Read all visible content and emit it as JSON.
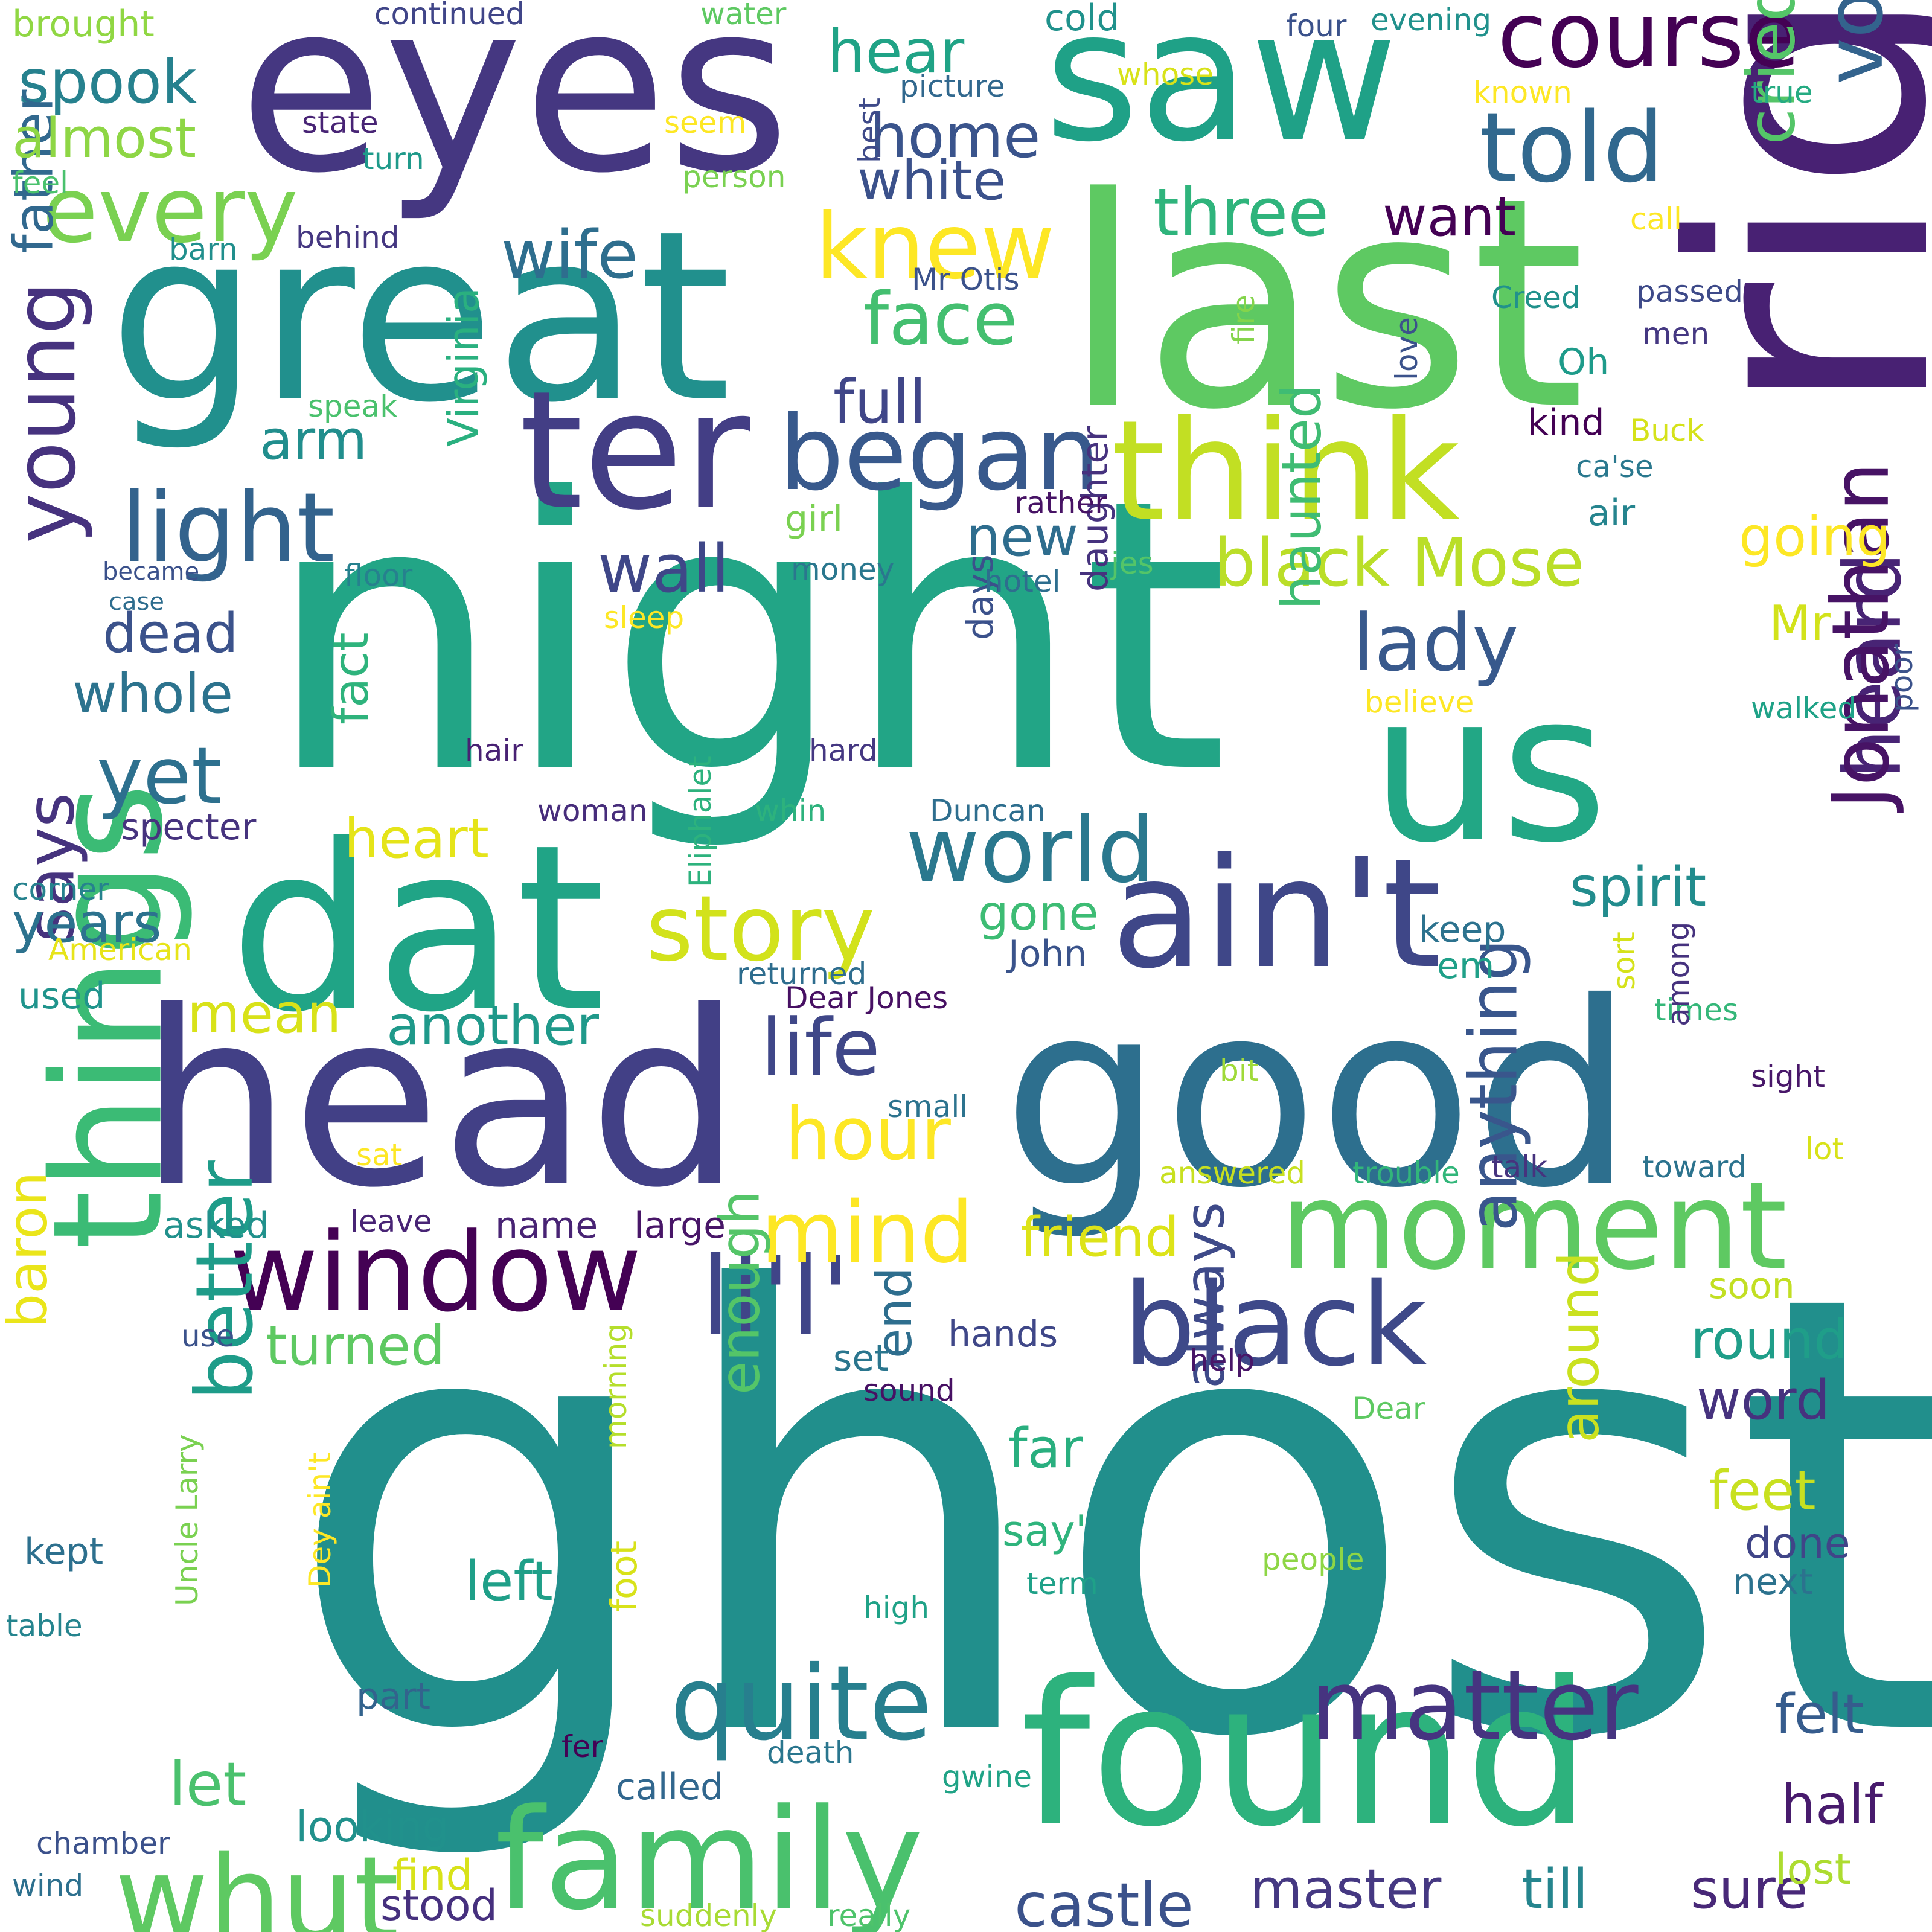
{
  "words": [
    {
      "text": "ghost",
      "color": "#218f8c"
    },
    {
      "text": "night",
      "color": "#22a586"
    },
    {
      "text": "good",
      "color": "#2d6f8e"
    },
    {
      "text": "head",
      "color": "#424086"
    },
    {
      "text": "eyes",
      "color": "#453781"
    },
    {
      "text": "saw",
      "color": "#1fa187"
    },
    {
      "text": "great",
      "color": "#21908d"
    },
    {
      "text": "last",
      "color": "#5ec962"
    },
    {
      "text": "right",
      "color": "#482173"
    },
    {
      "text": "us",
      "color": "#22a785"
    },
    {
      "text": "dat",
      "color": "#20a486"
    },
    {
      "text": "found",
      "color": "#2db27d"
    },
    {
      "text": "ain't",
      "color": "#3f4788"
    },
    {
      "text": "ter",
      "color": "#433e85"
    },
    {
      "text": "think",
      "color": "#c2df23"
    },
    {
      "text": "family",
      "color": "#4ac16d"
    },
    {
      "text": "moment",
      "color": "#5ec962"
    },
    {
      "text": "things",
      "color": "#3bbb75"
    },
    {
      "text": "window",
      "color": "#440154"
    },
    {
      "text": "li'l'",
      "color": "#404588"
    },
    {
      "text": "black",
      "color": "#3e4989"
    },
    {
      "text": "began",
      "color": "#38598c"
    },
    {
      "text": "light",
      "color": "#33638d"
    },
    {
      "text": "course",
      "color": "#440154"
    },
    {
      "text": "told",
      "color": "#31688e"
    },
    {
      "text": "quite",
      "color": "#277f8e"
    },
    {
      "text": "whut",
      "color": "#5ec962"
    },
    {
      "text": "every",
      "color": "#7ad151"
    },
    {
      "text": "knew",
      "color": "#fde725"
    },
    {
      "text": "young",
      "color": "#46327e"
    },
    {
      "text": "voice",
      "color": "#33638d"
    },
    {
      "text": "matter",
      "color": "#463480"
    },
    {
      "text": "story",
      "color": "#d2e21b"
    },
    {
      "text": "world",
      "color": "#2a788e"
    },
    {
      "text": "heard",
      "color": "#482475"
    },
    {
      "text": "Jonathan",
      "color": "#471365"
    },
    {
      "text": "black Mose",
      "color": "#bade28"
    },
    {
      "text": "mind",
      "color": "#fde725"
    },
    {
      "text": "life",
      "color": "#3f4788"
    },
    {
      "text": "lady",
      "color": "#38598c"
    },
    {
      "text": "yet",
      "color": "#2d708e"
    },
    {
      "text": "face",
      "color": "#44bf70"
    },
    {
      "text": "wife",
      "color": "#2e6e8e"
    },
    {
      "text": "hear",
      "color": "#20a386"
    },
    {
      "text": "home",
      "color": "#3a548c"
    },
    {
      "text": "three",
      "color": "#2fb47c"
    },
    {
      "text": "cried",
      "color": "#54c568"
    },
    {
      "text": "better",
      "color": "#1e9c89"
    },
    {
      "text": "hour",
      "color": "#fde725"
    },
    {
      "text": "says",
      "color": "#46337e"
    },
    {
      "text": "castle",
      "color": "#3b528b"
    },
    {
      "text": "master",
      "color": "#453882"
    },
    {
      "text": "till",
      "color": "#25858e"
    },
    {
      "text": "sure",
      "color": "#482878"
    },
    {
      "text": "anything",
      "color": "#39568c"
    },
    {
      "text": "wall",
      "color": "#3f4788"
    },
    {
      "text": "spook",
      "color": "#26818e"
    },
    {
      "text": "full",
      "color": "#404688"
    },
    {
      "text": "friend",
      "color": "#dde318"
    },
    {
      "text": "round",
      "color": "#1f9e89"
    },
    {
      "text": "spirit",
      "color": "#228c8d"
    },
    {
      "text": "another",
      "color": "#1f998a"
    },
    {
      "text": "haunted",
      "color": "#3fbc73"
    },
    {
      "text": "father",
      "color": "#31688e"
    },
    {
      "text": "new",
      "color": "#2e6d8e"
    },
    {
      "text": "white",
      "color": "#3b518b"
    },
    {
      "text": "almost",
      "color": "#8ed645"
    },
    {
      "text": "want",
      "color": "#440154"
    },
    {
      "text": "going",
      "color": "#fde725"
    },
    {
      "text": "arm",
      "color": "#218e8d"
    },
    {
      "text": "always",
      "color": "#3e4a89"
    },
    {
      "text": "turned",
      "color": "#5ec962"
    },
    {
      "text": "mean",
      "color": "#d8e219"
    },
    {
      "text": "Virginia",
      "color": "#2ab07f"
    },
    {
      "text": "heart",
      "color": "#e5e419"
    },
    {
      "text": "whole",
      "color": "#2c738e"
    },
    {
      "text": "years",
      "color": "#2c728e"
    },
    {
      "text": "fact",
      "color": "#2eb37c"
    },
    {
      "text": "dead",
      "color": "#3b528b"
    },
    {
      "text": "left",
      "color": "#1f9f88"
    },
    {
      "text": "let",
      "color": "#4ac16d"
    },
    {
      "text": "word",
      "color": "#46327e"
    },
    {
      "text": "enough",
      "color": "#54c568"
    },
    {
      "text": "around",
      "color": "#cae11f"
    },
    {
      "text": "far",
      "color": "#29af7f"
    },
    {
      "text": "feet",
      "color": "#c8e020"
    },
    {
      "text": "felt",
      "color": "#365c8d"
    },
    {
      "text": "half",
      "color": "#481b6d"
    },
    {
      "text": "gone",
      "color": "#3dbc74"
    },
    {
      "text": "end",
      "color": "#2e6e8e"
    },
    {
      "text": "Mr",
      "color": "#d2e21b"
    },
    {
      "text": "baron",
      "color": "#eae51a"
    },
    {
      "text": "looking",
      "color": "#21918c"
    },
    {
      "text": "say'",
      "color": "#2fb47c"
    },
    {
      "text": "done",
      "color": "#404588"
    },
    {
      "text": "called",
      "color": "#31678e"
    },
    {
      "text": "stood",
      "color": "#46307e"
    },
    {
      "text": "find",
      "color": "#d8e219"
    },
    {
      "text": "lost",
      "color": "#addc30"
    },
    {
      "text": "next",
      "color": "#2c728e"
    },
    {
      "text": "name",
      "color": "#482374"
    },
    {
      "text": "large",
      "color": "#481668"
    },
    {
      "text": "asked",
      "color": "#21918c"
    },
    {
      "text": "hands",
      "color": "#3f4788"
    },
    {
      "text": "keep",
      "color": "#2c728e"
    },
    {
      "text": "em",
      "color": "#1fa088"
    },
    {
      "text": "John",
      "color": "#3a538b"
    },
    {
      "text": "cold",
      "color": "#20928c"
    },
    {
      "text": "days",
      "color": "#3b518b"
    },
    {
      "text": "daughter",
      "color": "#46327e"
    },
    {
      "text": "Duncan",
      "color": "#2e6e8e"
    },
    {
      "text": "woman",
      "color": "#472d7b"
    },
    {
      "text": "specter",
      "color": "#46337e"
    },
    {
      "text": "hair",
      "color": "#482173"
    },
    {
      "text": "hard",
      "color": "#453882"
    },
    {
      "text": "girl",
      "color": "#7ad151"
    },
    {
      "text": "money",
      "color": "#2a778e"
    },
    {
      "text": "set",
      "color": "#2a768e"
    },
    {
      "text": "use",
      "color": "#3b528b"
    },
    {
      "text": "sound",
      "color": "#471063"
    },
    {
      "text": "help",
      "color": "#481668"
    },
    {
      "text": "talk",
      "color": "#46337e"
    },
    {
      "text": "toward",
      "color": "#2c738e"
    },
    {
      "text": "soon",
      "color": "#c2df23"
    },
    {
      "text": "Dear",
      "color": "#5ec962"
    },
    {
      "text": "people",
      "color": "#8ed645"
    },
    {
      "text": "term",
      "color": "#1fa188"
    },
    {
      "text": "high",
      "color": "#1fa287"
    },
    {
      "text": "part",
      "color": "#33638d"
    },
    {
      "text": "fer",
      "color": "#440154"
    },
    {
      "text": "death",
      "color": "#2a768e"
    },
    {
      "text": "gwine",
      "color": "#20a386"
    },
    {
      "text": "suddenly",
      "color": "#a8db34"
    },
    {
      "text": "really",
      "color": "#4ec36b"
    },
    {
      "text": "chamber",
      "color": "#3b518b"
    },
    {
      "text": "wind",
      "color": "#2d708e"
    },
    {
      "text": "kept",
      "color": "#2d708e"
    },
    {
      "text": "table",
      "color": "#25848e"
    },
    {
      "text": "used",
      "color": "#1f948c"
    },
    {
      "text": "corner",
      "color": "#26828e"
    },
    {
      "text": "American",
      "color": "#e7e419"
    },
    {
      "text": "foot",
      "color": "#d8e219"
    },
    {
      "text": "morning",
      "color": "#b5de2b"
    },
    {
      "text": "Uncle Larry",
      "color": "#7ad151"
    },
    {
      "text": "Dey ain't",
      "color": "#fde725"
    },
    {
      "text": "Eliphalet",
      "color": "#2db27d"
    },
    {
      "text": "returned",
      "color": "#2e6d8e"
    },
    {
      "text": "Dear Jones",
      "color": "#471063"
    },
    {
      "text": "whin",
      "color": "#2db27d"
    },
    {
      "text": "small",
      "color": "#2c738e"
    },
    {
      "text": "bit",
      "color": "#a0da39"
    },
    {
      "text": "times",
      "color": "#35b779"
    },
    {
      "text": "sort",
      "color": "#d5e21a"
    },
    {
      "text": "among",
      "color": "#46327e"
    },
    {
      "text": "sight",
      "color": "#481769"
    },
    {
      "text": "lot",
      "color": "#d8e219"
    },
    {
      "text": "answered",
      "color": "#c8e020"
    },
    {
      "text": "trouble",
      "color": "#32b67a"
    },
    {
      "text": "sat",
      "color": "#fde725"
    },
    {
      "text": "leave",
      "color": "#482475"
    },
    {
      "text": "poor",
      "color": "#3b528b"
    },
    {
      "text": "walked",
      "color": "#1fa287"
    },
    {
      "text": "believe",
      "color": "#fde725"
    },
    {
      "text": "jes",
      "color": "#54c568"
    },
    {
      "text": "hotel",
      "color": "#2e6e8e"
    },
    {
      "text": "rather",
      "color": "#471365"
    },
    {
      "text": "air",
      "color": "#25848e"
    },
    {
      "text": "ca'se",
      "color": "#2a788e"
    },
    {
      "text": "Buck",
      "color": "#d5e21a"
    },
    {
      "text": "kind",
      "color": "#440154"
    },
    {
      "text": "love",
      "color": "#3b528b"
    },
    {
      "text": "Oh",
      "color": "#1e9b8a"
    },
    {
      "text": "men",
      "color": "#453882"
    },
    {
      "text": "passed",
      "color": "#3e4a89"
    },
    {
      "text": "Creed",
      "color": "#21918c"
    },
    {
      "text": "fire",
      "color": "#84d44b"
    },
    {
      "text": "Mr Otis",
      "color": "#3b528b"
    },
    {
      "text": "call",
      "color": "#fde725"
    },
    {
      "text": "true",
      "color": "#25ab82"
    },
    {
      "text": "known",
      "color": "#fde725"
    },
    {
      "text": "evening",
      "color": "#21918c"
    },
    {
      "text": "four",
      "color": "#3b528b"
    },
    {
      "text": "whose",
      "color": "#d8e219"
    },
    {
      "text": "water",
      "color": "#5ec962"
    },
    {
      "text": "continued",
      "color": "#404588"
    },
    {
      "text": "brought",
      "color": "#90d743"
    },
    {
      "text": "picture",
      "color": "#31688e"
    },
    {
      "text": "state",
      "color": "#482475"
    },
    {
      "text": "turn",
      "color": "#1f9a8a"
    },
    {
      "text": "seem",
      "color": "#fde725"
    },
    {
      "text": "best",
      "color": "#3e4a89"
    },
    {
      "text": "feel",
      "color": "#4ac16d"
    },
    {
      "text": "person",
      "color": "#7ad151"
    },
    {
      "text": "barn",
      "color": "#218f8d"
    },
    {
      "text": "behind",
      "color": "#453781"
    },
    {
      "text": "speak",
      "color": "#4ac16d"
    },
    {
      "text": "floor",
      "color": "#26818e"
    },
    {
      "text": "became",
      "color": "#3b518b"
    },
    {
      "text": "case",
      "color": "#2e6d8e"
    },
    {
      "text": "sleep",
      "color": "#fde725"
    }
  ]
}
